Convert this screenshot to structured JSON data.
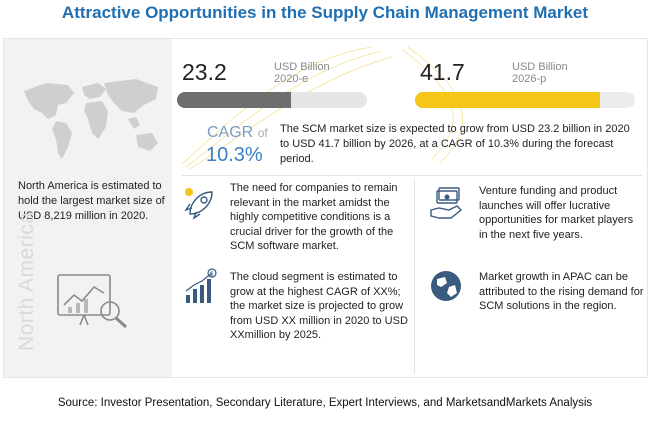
{
  "title": "Attractive Opportunities in the Supply Chain Management Market",
  "left": {
    "region_text": "North America is estimated to hold the largest market size of USD 8,219 million in 2020.",
    "region_label": "North America",
    "icons": [
      "world-map",
      "analytics-chart"
    ]
  },
  "market": {
    "value_2020": "23.2",
    "unit_2020": "USD Billion",
    "year_2020": "2020-e",
    "value_2026": "41.7",
    "unit_2026": "USD Billion",
    "year_2026": "2026-p",
    "bar_2020_fill_fraction": 0.6,
    "bar_2026_fill_fraction": 0.84,
    "colors": {
      "bar_2020": "#6e6e6e",
      "bar_2026": "#f5c518",
      "accent": "#3b7fc4"
    }
  },
  "cagr": {
    "label": "CAGR",
    "of": "of",
    "value": "10.3%",
    "description": "The SCM market size is expected to grow from USD 23.2 billion in 2020 to USD 41.7 billion by 2026, at a CAGR of 10.3% during the forecast period."
  },
  "insights": [
    {
      "icon": "rocket-icon",
      "text": "The need for companies to remain relevant in the market amidst the highly competitive conditions is a crucial driver for the growth of the SCM software market."
    },
    {
      "icon": "cloud-growth-icon",
      "text": "The cloud segment is estimated to grow at the highest CAGR of XX%; the market size is projected to grow from USD XX million in 2020 to USD XXmillion by 2025."
    },
    {
      "icon": "funding-icon",
      "text": "Venture funding and product launches will offer lucrative opportunities for market players in the next five years."
    },
    {
      "icon": "globe-icon",
      "text": "Market growth in APAC can be attributed to the rising demand for SCM solutions in the region."
    }
  ],
  "source": "Source: Investor Presentation, Secondary Literature, Expert Interviews, and MarketsandMarkets Analysis"
}
